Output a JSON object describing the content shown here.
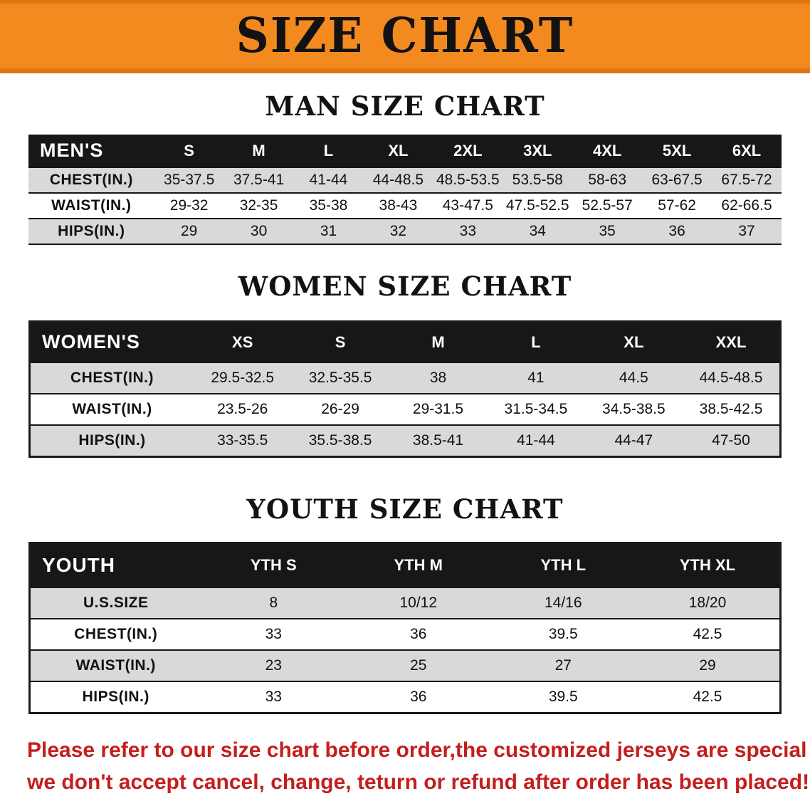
{
  "banner": {
    "title": "SIZE CHART"
  },
  "colors": {
    "banner_orange": "#f28a20",
    "table_header_black": "#171717",
    "row_gray": "#d9d9d9",
    "footer_red": "#c41e1e"
  },
  "sections": [
    {
      "heading": "MAN SIZE CHART",
      "table": {
        "header": [
          "MEN'S",
          "S",
          "M",
          "L",
          "XL",
          "2XL",
          "3XL",
          "4XL",
          "5XL",
          "6XL"
        ],
        "rows": [
          [
            "CHEST(IN.)",
            "35-37.5",
            "37.5-41",
            "41-44",
            "44-48.5",
            "48.5-53.5",
            "53.5-58",
            "58-63",
            "63-67.5",
            "67.5-72"
          ],
          [
            "WAIST(IN.)",
            "29-32",
            "32-35",
            "35-38",
            "38-43",
            "43-47.5",
            "47.5-52.5",
            "52.5-57",
            "57-62",
            "62-66.5"
          ],
          [
            "HIPS(IN.)",
            "29",
            "30",
            "31",
            "32",
            "33",
            "34",
            "35",
            "36",
            "37"
          ]
        ]
      }
    },
    {
      "heading": "WOMEN SIZE CHART",
      "table": {
        "header": [
          "WOMEN'S",
          "XS",
          "S",
          "M",
          "L",
          "XL",
          "XXL"
        ],
        "rows": [
          [
            "CHEST(IN.)",
            "29.5-32.5",
            "32.5-35.5",
            "38",
            "41",
            "44.5",
            "44.5-48.5"
          ],
          [
            "WAIST(IN.)",
            "23.5-26",
            "26-29",
            "29-31.5",
            "31.5-34.5",
            "34.5-38.5",
            "38.5-42.5"
          ],
          [
            "HIPS(IN.)",
            "33-35.5",
            "35.5-38.5",
            "38.5-41",
            "41-44",
            "44-47",
            "47-50"
          ]
        ]
      }
    },
    {
      "heading": "YOUTH SIZE CHART",
      "table": {
        "header": [
          "YOUTH",
          "YTH S",
          "YTH M",
          "YTH L",
          "YTH XL"
        ],
        "rows": [
          [
            "U.S.SIZE",
            "8",
            "10/12",
            "14/16",
            "18/20"
          ],
          [
            "CHEST(IN.)",
            "33",
            "36",
            "39.5",
            "42.5"
          ],
          [
            "WAIST(IN.)",
            "23",
            "25",
            "27",
            "29"
          ],
          [
            "HIPS(IN.)",
            "33",
            "36",
            "39.5",
            "42.5"
          ]
        ]
      }
    }
  ],
  "footer": {
    "line1": "Please refer to our size chart before order,the customized jerseys are special products,",
    "line2": "we don't accept cancel, change, teturn or refund after order has been placed!"
  }
}
